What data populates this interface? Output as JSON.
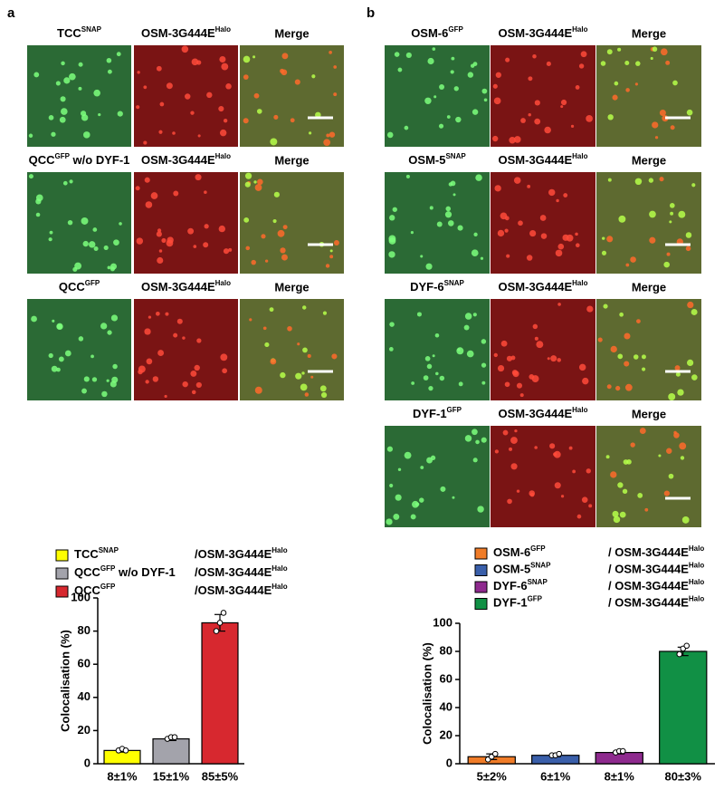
{
  "panels": {
    "a": {
      "label": "a",
      "rows": [
        {
          "name": "TCC",
          "sup": "SNAP",
          "partner": "OSM-3G444E",
          "partner_sup": "Halo",
          "merge": "Merge"
        },
        {
          "name": "QCC",
          "sup": "GFP",
          "extra": " w/o DYF-1",
          "partner": "OSM-3G444E",
          "partner_sup": "Halo",
          "merge": "Merge"
        },
        {
          "name": "QCC",
          "sup": "GFP",
          "partner": "OSM-3G444E",
          "partner_sup": "Halo",
          "merge": "Merge"
        }
      ]
    },
    "b": {
      "label": "b",
      "rows": [
        {
          "name": "OSM-6",
          "sup": "GFP",
          "partner": "OSM-3G444E",
          "partner_sup": "Halo",
          "merge": "Merge"
        },
        {
          "name": "OSM-5",
          "sup": "SNAP",
          "partner": "OSM-3G444E",
          "partner_sup": "Halo",
          "merge": "Merge"
        },
        {
          "name": "DYF-6",
          "sup": "SNAP",
          "partner": "OSM-3G444E",
          "partner_sup": "Halo",
          "merge": "Merge"
        },
        {
          "name": "DYF-1",
          "sup": "GFP",
          "partner": "OSM-3G444E",
          "partner_sup": "Halo",
          "merge": "Merge"
        }
      ]
    }
  },
  "chart_data": [
    {
      "type": "bar",
      "ylabel": "Colocalisation (%)",
      "categories": [
        "8±1%",
        "15±1%",
        "85±5%"
      ],
      "values": [
        8,
        15,
        85
      ],
      "errors": [
        1,
        1,
        5
      ],
      "points": [
        [
          8,
          9,
          8
        ],
        [
          15,
          16,
          16
        ],
        [
          80,
          85,
          91
        ]
      ],
      "colors": [
        "#ffff00",
        "#a3a3ab",
        "#d7282f"
      ],
      "ylim": [
        0,
        100
      ],
      "yticks": [
        0,
        20,
        40,
        60,
        80,
        100
      ],
      "legend": [
        {
          "name": "TCC",
          "sup": "SNAP",
          "partner": "/OSM-3G444E",
          "partner_sup": "Halo"
        },
        {
          "name": "QCC",
          "sup": "GFP",
          "extra": " w/o DYF-1",
          "partner": "/OSM-3G444E",
          "partner_sup": "Halo"
        },
        {
          "name": "QCC",
          "sup": "GFP",
          "partner": "/OSM-3G444E",
          "partner_sup": "Halo"
        }
      ]
    },
    {
      "type": "bar",
      "ylabel": "Colocalisation (%)",
      "categories": [
        "5±2%",
        "6±1%",
        "8±1%",
        "80±3%"
      ],
      "values": [
        5,
        6,
        8,
        80
      ],
      "errors": [
        2,
        1,
        1,
        3
      ],
      "points": [
        [
          3,
          5,
          7
        ],
        [
          6,
          6,
          7
        ],
        [
          8,
          9,
          9
        ],
        [
          78,
          82,
          84
        ]
      ],
      "colors": [
        "#f07c28",
        "#3a5faa",
        "#8e2a8e",
        "#119045"
      ],
      "ylim": [
        0,
        100
      ],
      "yticks": [
        0,
        20,
        40,
        60,
        80,
        100
      ],
      "legend": [
        {
          "name": "OSM-6",
          "sup": "GFP",
          "partner": "/ OSM-3G444E",
          "partner_sup": "Halo"
        },
        {
          "name": "OSM-5",
          "sup": "SNAP",
          "partner": "/ OSM-3G444E",
          "partner_sup": "Halo"
        },
        {
          "name": "DYF-6",
          "sup": "SNAP",
          "partner": "/ OSM-3G444E",
          "partner_sup": "Halo"
        },
        {
          "name": "DYF-1",
          "sup": "GFP",
          "partner": "/ OSM-3G444E",
          "partner_sup": "Halo"
        }
      ]
    }
  ]
}
